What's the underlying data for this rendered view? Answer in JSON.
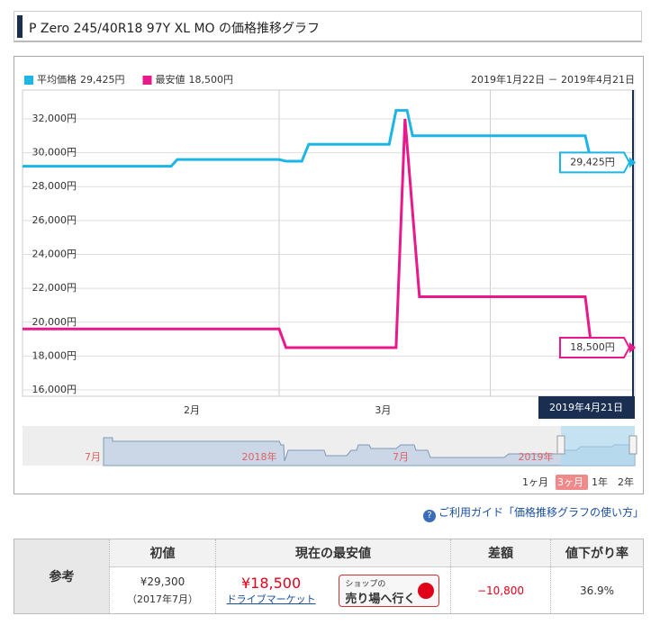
{
  "header": {
    "title": "P Zero 245/40R18 97Y XL MO の価格推移グラフ"
  },
  "chart_data": {
    "type": "line",
    "date_range": "2019年1月22日 － 2019年4月21日",
    "x": [
      0,
      21.6,
      22.5,
      37.3,
      38.3,
      40.6,
      41.6,
      53.3,
      54.3,
      55.6,
      55.9,
      56.7,
      57.7,
      81.8,
      82.7,
      89
    ],
    "xlim": [
      0,
      89
    ],
    "xticks": [
      {
        "value": 24.6,
        "label": "2月"
      },
      {
        "value": 52.4,
        "label": "3月"
      }
    ],
    "xgrid": [
      37.3,
      68
    ],
    "ylim": [
      15630,
      33700
    ],
    "yticks": [
      {
        "value": 16000,
        "label": "16,000円"
      },
      {
        "value": 18000,
        "label": "18,000円"
      },
      {
        "value": 20000,
        "label": "20,000円"
      },
      {
        "value": 22000,
        "label": "22,000円"
      },
      {
        "value": 24000,
        "label": "24,000円"
      },
      {
        "value": 26000,
        "label": "26,000円"
      },
      {
        "value": 28000,
        "label": "28,000円"
      },
      {
        "value": 30000,
        "label": "30,000円"
      },
      {
        "value": 32000,
        "label": "32,000円"
      }
    ],
    "grid": true,
    "series": [
      {
        "name": "平均価格",
        "color": "#1db4e6",
        "values": [
          29200,
          29200,
          29600,
          29600,
          29500,
          29500,
          30500,
          30500,
          32500,
          32500,
          32500,
          31000,
          31000,
          31000,
          29425,
          29425
        ],
        "value_labels": [
          null,
          null,
          null,
          null,
          null,
          null,
          null,
          null,
          null,
          null,
          null,
          null,
          null,
          null,
          null,
          "29,425円"
        ]
      },
      {
        "name": "最安値",
        "color": "#e8198b",
        "values": [
          19600,
          19600,
          19600,
          19600,
          18500,
          18500,
          18500,
          18500,
          18500,
          32000,
          30500,
          26500,
          21500,
          21500,
          18500,
          18500
        ],
        "value_labels": [
          null,
          null,
          null,
          null,
          null,
          null,
          null,
          null,
          null,
          null,
          null,
          null,
          null,
          null,
          null,
          "18,500円"
        ]
      }
    ],
    "current_date": "2019年4月21日"
  },
  "navigator": {
    "labels": [
      "7月",
      "2018年",
      "7月",
      "2019年"
    ]
  },
  "range_buttons": [
    "1ヶ月",
    "3ヶ月",
    "1年",
    "2年"
  ],
  "help_link": "ご利用ガイド「価格推移グラフの使い方」",
  "table": {
    "row_header": "参考",
    "headers": [
      "初値",
      "現在の最安値",
      "差額",
      "値下がり率"
    ],
    "initial_price": "¥29,300",
    "initial_date": "（2017年7月）",
    "lowest_price": "¥18,500",
    "shop": "ドライブマーケット",
    "shop_button": [
      "ショップの",
      "売り場へ行く"
    ],
    "difference": "−10,800",
    "drop_rate": "36.9%"
  }
}
